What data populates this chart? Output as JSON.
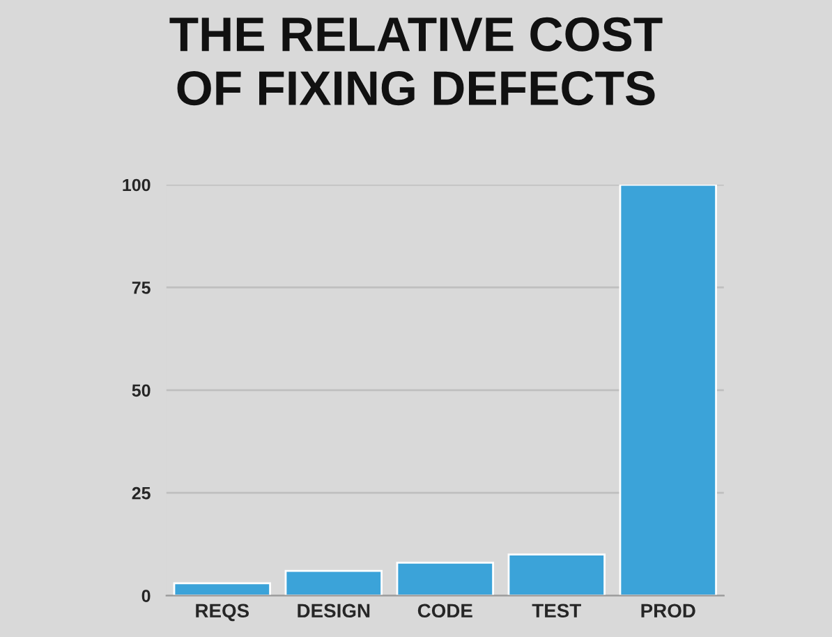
{
  "chart_data": {
    "type": "bar",
    "title": "THE RELATIVE COST\nOF FIXING DEFECTS",
    "categories": [
      "REQS",
      "DESIGN",
      "CODE",
      "TEST",
      "PROD"
    ],
    "values": [
      3,
      6,
      8,
      10,
      100
    ],
    "color": "#3ba3d9",
    "ylim": [
      0,
      100
    ],
    "yticks": [
      0,
      25,
      50,
      75,
      100
    ],
    "grid": "y",
    "legend": false
  }
}
